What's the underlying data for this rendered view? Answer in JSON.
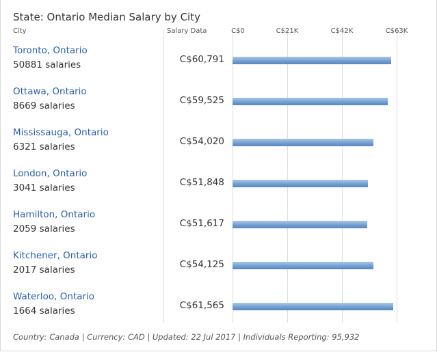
{
  "chart_data": {
    "type": "bar",
    "orientation": "horizontal",
    "title": "State: Ontario Median Salary by City",
    "column_headers": {
      "city": "City",
      "salary": "Salary Data"
    },
    "categories": [
      "Toronto, Ontario",
      "Ottawa, Ontario",
      "Mississauga, Ontario",
      "London, Ontario",
      "Hamilton, Ontario",
      "Kitchener, Ontario",
      "Waterloo, Ontario"
    ],
    "salary_counts": [
      "50881 salaries",
      "8669 salaries",
      "6321 salaries",
      "3041 salaries",
      "2059 salaries",
      "2017 salaries",
      "1664 salaries"
    ],
    "values": [
      60791,
      59525,
      54020,
      51848,
      51617,
      54125,
      61565
    ],
    "value_labels": [
      "C$60,791",
      "C$59,525",
      "C$54,020",
      "C$51,848",
      "C$51,617",
      "C$54,125",
      "C$61,565"
    ],
    "xlim": [
      0,
      63000
    ],
    "ticks": [
      0,
      21000,
      42000,
      63000
    ],
    "tick_labels": [
      "C$0",
      "C$21K",
      "C$42K",
      "C$63K"
    ],
    "grid": true,
    "bar_color": "#6f9dcf"
  },
  "footer": "Country: Canada | Currency: CAD | Updated: 22 Jul 2017 | Individuals Reporting: 95,932"
}
